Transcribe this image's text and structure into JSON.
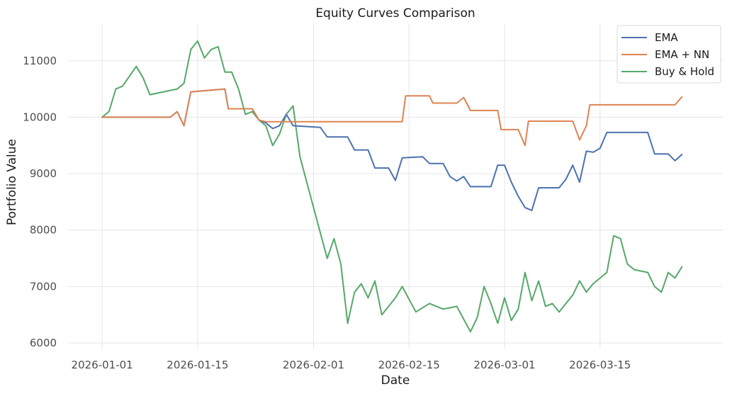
{
  "chart_data": {
    "type": "line",
    "title": "Equity Curves Comparison",
    "xlabel": "Date",
    "ylabel": "Portfolio Value",
    "xlim": [
      "2025-12-27",
      "2026-04-02"
    ],
    "ylim": [
      5900,
      11650
    ],
    "x_ticks": [
      "2026-01-01",
      "2026-01-15",
      "2026-02-01",
      "2026-02-15",
      "2026-03-01",
      "2026-03-15"
    ],
    "y_ticks": [
      6000,
      7000,
      8000,
      9000,
      10000,
      11000
    ],
    "grid": true,
    "legend_position": "top-right",
    "series": [
      {
        "name": "EMA",
        "color": "#4c72b0",
        "points": [
          [
            "2026-01-01",
            10000
          ],
          [
            "2026-01-11",
            10000
          ],
          [
            "2026-01-12",
            10100
          ],
          [
            "2026-01-13",
            9850
          ],
          [
            "2026-01-14",
            10450
          ],
          [
            "2026-01-19",
            10500
          ],
          [
            "2026-01-19T12",
            10150
          ],
          [
            "2026-01-23",
            10150
          ],
          [
            "2026-01-24",
            9950
          ],
          [
            "2026-01-25",
            9900
          ],
          [
            "2026-01-26",
            9800
          ],
          [
            "2026-01-27",
            9850
          ],
          [
            "2026-01-28",
            10050
          ],
          [
            "2026-01-29",
            9850
          ],
          [
            "2026-02-02",
            9820
          ],
          [
            "2026-02-03",
            9650
          ],
          [
            "2026-02-06",
            9650
          ],
          [
            "2026-02-07",
            9420
          ],
          [
            "2026-02-09",
            9420
          ],
          [
            "2026-02-10",
            9100
          ],
          [
            "2026-02-12",
            9100
          ],
          [
            "2026-02-13",
            8880
          ],
          [
            "2026-02-14",
            9280
          ],
          [
            "2026-02-17",
            9300
          ],
          [
            "2026-02-18",
            9180
          ],
          [
            "2026-02-20",
            9180
          ],
          [
            "2026-02-21",
            8950
          ],
          [
            "2026-02-22",
            8870
          ],
          [
            "2026-02-23",
            8950
          ],
          [
            "2026-02-24",
            8770
          ],
          [
            "2026-02-27",
            8770
          ],
          [
            "2026-02-28",
            9150
          ],
          [
            "2026-03-01",
            9150
          ],
          [
            "2026-03-02",
            8850
          ],
          [
            "2026-03-03",
            8600
          ],
          [
            "2026-03-04",
            8400
          ],
          [
            "2026-03-05",
            8350
          ],
          [
            "2026-03-06",
            8750
          ],
          [
            "2026-03-09",
            8750
          ],
          [
            "2026-03-10",
            8900
          ],
          [
            "2026-03-11",
            9150
          ],
          [
            "2026-03-12",
            8850
          ],
          [
            "2026-03-13",
            9400
          ],
          [
            "2026-03-14",
            9380
          ],
          [
            "2026-03-15",
            9450
          ],
          [
            "2026-03-16",
            9730
          ],
          [
            "2026-03-22",
            9730
          ],
          [
            "2026-03-23",
            9350
          ],
          [
            "2026-03-25",
            9350
          ],
          [
            "2026-03-26",
            9230
          ],
          [
            "2026-03-27",
            9340
          ]
        ]
      },
      {
        "name": "EMA + NN",
        "color": "#dd8452",
        "points": [
          [
            "2026-01-01",
            10000
          ],
          [
            "2026-01-11",
            10000
          ],
          [
            "2026-01-12",
            10100
          ],
          [
            "2026-01-13",
            9850
          ],
          [
            "2026-01-14",
            10450
          ],
          [
            "2026-01-19",
            10500
          ],
          [
            "2026-01-19T12",
            10150
          ],
          [
            "2026-01-23",
            10150
          ],
          [
            "2026-01-24",
            9950
          ],
          [
            "2026-01-25",
            9920
          ],
          [
            "2026-02-14",
            9920
          ],
          [
            "2026-02-14T12",
            10380
          ],
          [
            "2026-02-18",
            10380
          ],
          [
            "2026-02-18T12",
            10250
          ],
          [
            "2026-02-22",
            10250
          ],
          [
            "2026-02-23",
            10350
          ],
          [
            "2026-02-24",
            10120
          ],
          [
            "2026-02-28",
            10120
          ],
          [
            "2026-02-28T12",
            9780
          ],
          [
            "2026-03-03",
            9780
          ],
          [
            "2026-03-04",
            9500
          ],
          [
            "2026-03-04T12",
            9930
          ],
          [
            "2026-03-11",
            9930
          ],
          [
            "2026-03-12",
            9600
          ],
          [
            "2026-03-13",
            9850
          ],
          [
            "2026-03-13T12",
            10220
          ],
          [
            "2026-03-26",
            10220
          ],
          [
            "2026-03-27",
            10360
          ]
        ]
      },
      {
        "name": "Buy & Hold",
        "color": "#55a868",
        "points": [
          [
            "2026-01-01",
            10000
          ],
          [
            "2026-01-02",
            10100
          ],
          [
            "2026-01-03",
            10500
          ],
          [
            "2026-01-04",
            10550
          ],
          [
            "2026-01-06",
            10900
          ],
          [
            "2026-01-07",
            10700
          ],
          [
            "2026-01-08",
            10400
          ],
          [
            "2026-01-10",
            10450
          ],
          [
            "2026-01-12",
            10500
          ],
          [
            "2026-01-13",
            10600
          ],
          [
            "2026-01-14",
            11200
          ],
          [
            "2026-01-15",
            11350
          ],
          [
            "2026-01-16",
            11050
          ],
          [
            "2026-01-17",
            11200
          ],
          [
            "2026-01-18",
            11250
          ],
          [
            "2026-01-19",
            10800
          ],
          [
            "2026-01-20",
            10800
          ],
          [
            "2026-01-21",
            10500
          ],
          [
            "2026-01-22",
            10050
          ],
          [
            "2026-01-23",
            10100
          ],
          [
            "2026-01-24",
            9950
          ],
          [
            "2026-01-25",
            9850
          ],
          [
            "2026-01-26",
            9500
          ],
          [
            "2026-01-27",
            9700
          ],
          [
            "2026-01-28",
            10050
          ],
          [
            "2026-01-29",
            10200
          ],
          [
            "2026-01-30",
            9300
          ],
          [
            "2026-01-31",
            8850
          ],
          [
            "2026-02-01",
            8400
          ],
          [
            "2026-02-02",
            7950
          ],
          [
            "2026-02-03",
            7500
          ],
          [
            "2026-02-04",
            7850
          ],
          [
            "2026-02-05",
            7400
          ],
          [
            "2026-02-06",
            6350
          ],
          [
            "2026-02-07",
            6900
          ],
          [
            "2026-02-08",
            7050
          ],
          [
            "2026-02-09",
            6800
          ],
          [
            "2026-02-10",
            7100
          ],
          [
            "2026-02-11",
            6500
          ],
          [
            "2026-02-12",
            6650
          ],
          [
            "2026-02-13",
            6800
          ],
          [
            "2026-02-14",
            7000
          ],
          [
            "2026-02-16",
            6550
          ],
          [
            "2026-02-18",
            6700
          ],
          [
            "2026-02-20",
            6600
          ],
          [
            "2026-02-22",
            6650
          ],
          [
            "2026-02-24",
            6200
          ],
          [
            "2026-02-25",
            6450
          ],
          [
            "2026-02-26",
            7000
          ],
          [
            "2026-02-27",
            6700
          ],
          [
            "2026-02-28",
            6350
          ],
          [
            "2026-03-01",
            6800
          ],
          [
            "2026-03-02",
            6400
          ],
          [
            "2026-03-03",
            6600
          ],
          [
            "2026-03-04",
            7250
          ],
          [
            "2026-03-05",
            6750
          ],
          [
            "2026-03-06",
            7100
          ],
          [
            "2026-03-07",
            6650
          ],
          [
            "2026-03-08",
            6700
          ],
          [
            "2026-03-09",
            6550
          ],
          [
            "2026-03-11",
            6850
          ],
          [
            "2026-03-12",
            7100
          ],
          [
            "2026-03-13",
            6900
          ],
          [
            "2026-03-14",
            7050
          ],
          [
            "2026-03-16",
            7250
          ],
          [
            "2026-03-17",
            7900
          ],
          [
            "2026-03-18",
            7850
          ],
          [
            "2026-03-19",
            7400
          ],
          [
            "2026-03-20",
            7300
          ],
          [
            "2026-03-22",
            7250
          ],
          [
            "2026-03-23",
            7000
          ],
          [
            "2026-03-24",
            6900
          ],
          [
            "2026-03-25",
            7250
          ],
          [
            "2026-03-26",
            7150
          ],
          [
            "2026-03-27",
            7350
          ]
        ]
      }
    ]
  }
}
